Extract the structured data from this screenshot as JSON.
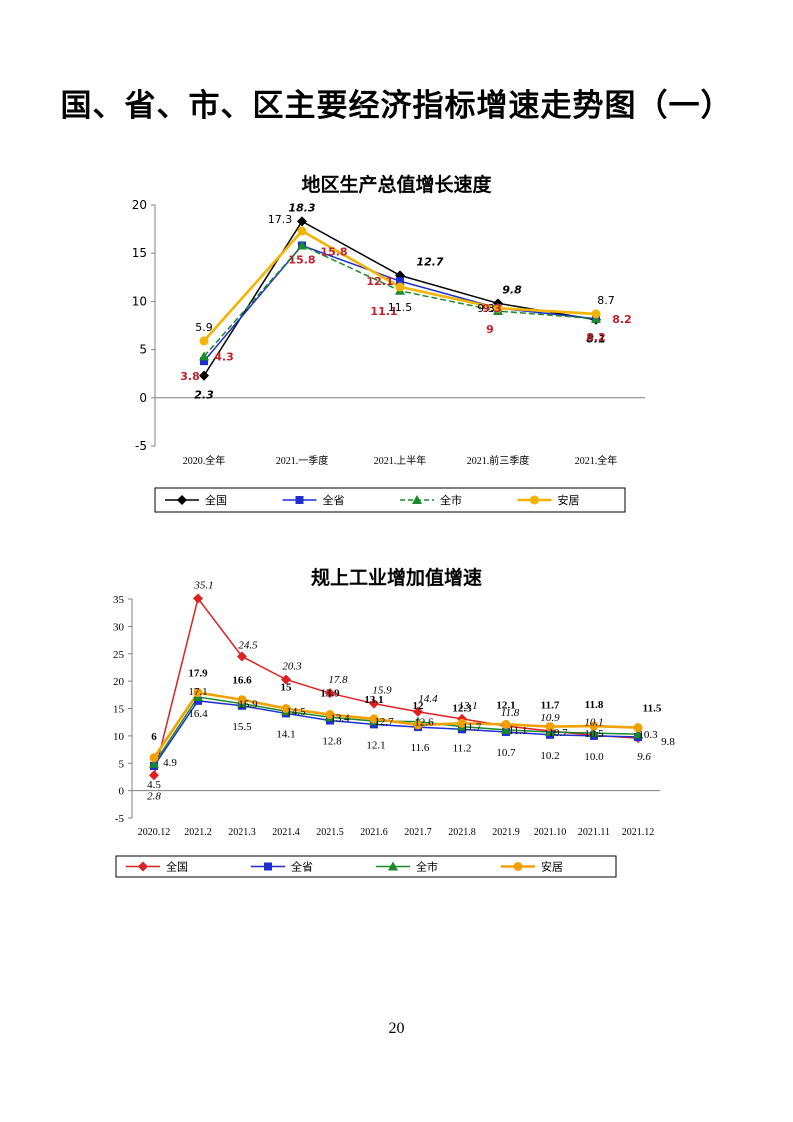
{
  "page": {
    "title": "国、省、市、区主要经济指标增速走势图（一）",
    "page_number": "20"
  },
  "series_colors": {
    "全国": "#000000",
    "全省": "#1f2fd0",
    "全市": "#1a8a2a",
    "安居": "#f2b400"
  },
  "chart_data": [
    {
      "type": "line",
      "title": "地区生产总值增长速度",
      "categories": [
        "2020.全年",
        "2021.一季度",
        "2021.上半年",
        "2021.前三季度",
        "2021.全年"
      ],
      "ylim": [
        -5,
        20
      ],
      "yticks": [
        "-5",
        "0",
        "5",
        "10",
        "15",
        "20"
      ],
      "legend_position": "bottom",
      "series": [
        {
          "name": "全国",
          "color": "#000000",
          "marker": "diamond",
          "dash": false,
          "values": [
            2.3,
            18.3,
            12.7,
            9.8,
            8.1
          ],
          "labels": [
            "2.3",
            "18.3",
            "12.7",
            "9.8",
            "8.1"
          ]
        },
        {
          "name": "全省",
          "color": "#1f2fd0",
          "marker": "square",
          "dash": false,
          "values": [
            3.8,
            15.8,
            12.1,
            9.3,
            8.2
          ],
          "labels": [
            "3.8",
            "15.8",
            "12.1",
            "9.3",
            "8.2"
          ]
        },
        {
          "name": "全市",
          "color": "#1a8a2a",
          "marker": "triangle",
          "dash": true,
          "values": [
            4.3,
            15.8,
            11.1,
            9.0,
            8.2
          ],
          "labels": [
            "4.3",
            "15.8",
            "11.1",
            "9",
            "8.2"
          ]
        },
        {
          "name": "安居",
          "color": "#f2b400",
          "marker": "circle",
          "dash": false,
          "values": [
            5.9,
            17.3,
            11.5,
            9.3,
            8.7
          ],
          "labels": [
            "5.9",
            "17.3",
            "11.5",
            "9.3",
            "8.7"
          ]
        }
      ]
    },
    {
      "type": "line",
      "title": "规上工业增加值增速",
      "categories": [
        "2020.12",
        "2021.2",
        "2021.3",
        "2021.4",
        "2021.5",
        "2021.6",
        "2021.7",
        "2021.8",
        "2021.9",
        "2021.10",
        "2021.11",
        "2021.12"
      ],
      "ylim": [
        -5,
        35
      ],
      "yticks": [
        "-5",
        "0",
        "5",
        "10",
        "15",
        "20",
        "25",
        "30",
        "35"
      ],
      "legend_position": "bottom",
      "series": [
        {
          "name": "全国",
          "color": "#e02020",
          "marker": "diamond",
          "dash": false,
          "values": [
            2.8,
            35.1,
            24.5,
            20.3,
            17.8,
            15.9,
            14.4,
            13.1,
            11.8,
            10.9,
            10.1,
            9.6
          ],
          "labels": [
            "2.8",
            "35.1",
            "24.5",
            "20.3",
            "17.8",
            "15.9",
            "14.4",
            "13.1",
            "11.8",
            "10.9",
            "10.1",
            "9.6"
          ]
        },
        {
          "name": "全省",
          "color": "#1f2fd0",
          "marker": "square",
          "dash": false,
          "values": [
            4.5,
            16.4,
            15.5,
            14.1,
            12.8,
            12.1,
            11.6,
            11.2,
            10.7,
            10.2,
            10.0,
            9.8
          ],
          "labels": [
            "4.5",
            "16.4",
            "15.5",
            "14.1",
            "12.8",
            "12.1",
            "11.6",
            "11.2",
            "10.7",
            "10.2",
            "10.0",
            "9.8"
          ]
        },
        {
          "name": "全市",
          "color": "#1a8a2a",
          "marker": "triangle",
          "dash": false,
          "values": [
            4.9,
            17.1,
            15.9,
            14.5,
            13.4,
            12.7,
            12.6,
            11.7,
            11.1,
            10.7,
            10.5,
            10.3
          ],
          "labels": [
            "4.9",
            "17.1",
            "15.9",
            "14.5",
            "13.4",
            "12.7",
            "12.6",
            "11.7",
            "11.1",
            "10.7",
            "10.5",
            "10.3"
          ]
        },
        {
          "name": "安居",
          "color": "#f2a000",
          "marker": "circle",
          "dash": false,
          "values": [
            6,
            17.9,
            16.6,
            15,
            13.9,
            13.1,
            12.0,
            12.3,
            12.1,
            11.7,
            11.8,
            11.5
          ],
          "labels": [
            "6",
            "17.9",
            "16.6",
            "15",
            "13.9",
            "13.1",
            "12",
            "12.3",
            "12.1",
            "11.7",
            "11.8",
            "11.5"
          ]
        }
      ]
    }
  ]
}
